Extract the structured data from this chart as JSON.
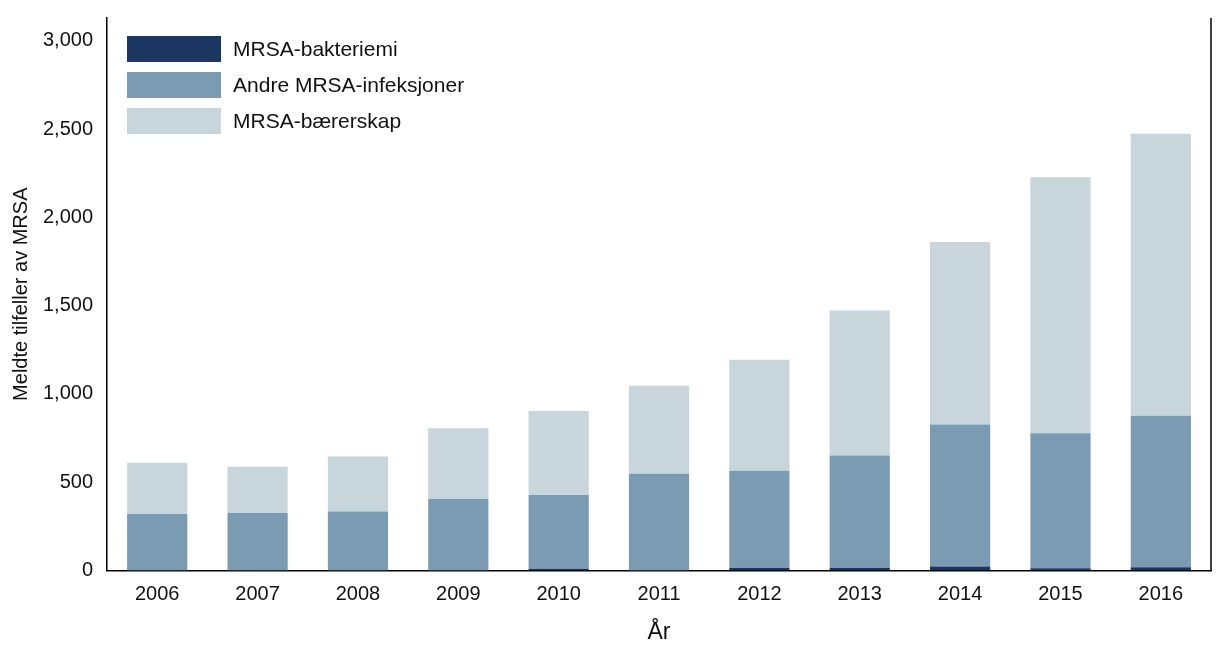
{
  "chart_data": {
    "type": "bar",
    "stacked": true,
    "xlabel": "År",
    "ylabel": "Meldte tilfeller av MRSA",
    "categories": [
      "2006",
      "2007",
      "2008",
      "2009",
      "2010",
      "2011",
      "2012",
      "2013",
      "2014",
      "2015",
      "2016"
    ],
    "series": [
      {
        "name": "MRSA-bakteriemi",
        "color": "#1b3660",
        "values": [
          null,
          null,
          null,
          null,
          10,
          null,
          15,
          15,
          22,
          12,
          18
        ]
      },
      {
        "name": "Andre MRSA-infeksjoner",
        "color": "#7b9bb3",
        "values": [
          320,
          325,
          334,
          405,
          417,
          548,
          549,
          636,
          805,
          765,
          858
        ]
      },
      {
        "name": "MRSA-bærerskap",
        "color": "#c8d6dc",
        "values": [
          290,
          263,
          312,
          400,
          476,
          498,
          629,
          822,
          1034,
          1451,
          1598
        ]
      }
    ],
    "ylim": [
      0,
      3130
    ],
    "yticks": [
      0,
      {
        "value": 500,
        "label": "500"
      },
      {
        "value": 1000,
        "label": "1,000"
      },
      {
        "value": 1500,
        "label": "1,500"
      },
      {
        "value": 2000,
        "label": "2,000"
      },
      {
        "value": 2500,
        "label": "2,500"
      },
      {
        "value": 3000,
        "label": "3,000"
      }
    ],
    "grid": false,
    "legend": "top left"
  }
}
